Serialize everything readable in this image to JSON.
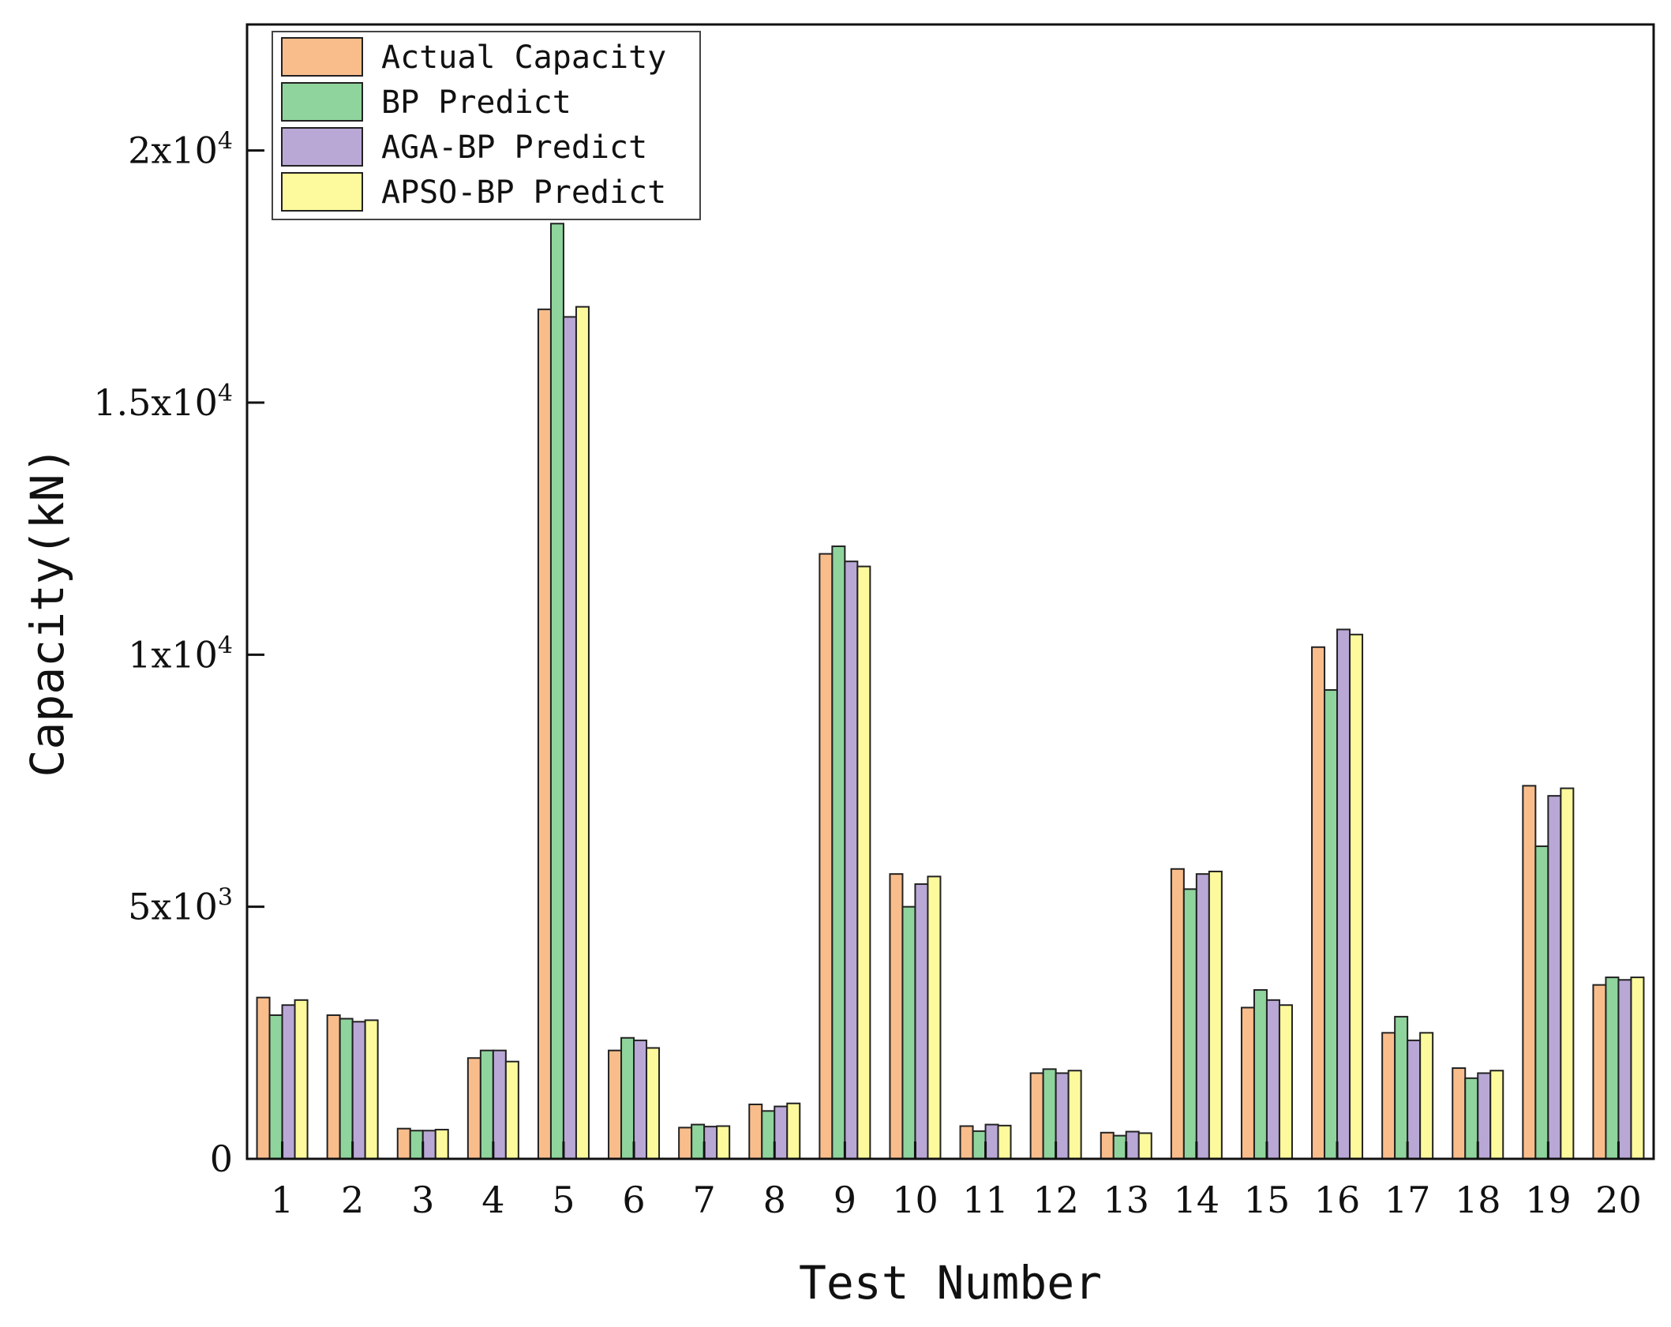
{
  "chart_data": {
    "type": "bar",
    "xlabel": "Test Number",
    "ylabel": "Capacity(kN)",
    "categories": [
      "1",
      "2",
      "3",
      "4",
      "5",
      "6",
      "7",
      "8",
      "9",
      "10",
      "11",
      "12",
      "13",
      "14",
      "15",
      "16",
      "17",
      "18",
      "19",
      "20"
    ],
    "ylim": [
      0,
      22500
    ],
    "y_ticks": [
      {
        "value": 0,
        "label": "0"
      },
      {
        "value": 5000,
        "label": "5x10",
        "sup": "3"
      },
      {
        "value": 10000,
        "label": "1x10",
        "sup": "4"
      },
      {
        "value": 15000,
        "label": "1.5x10",
        "sup": "4"
      },
      {
        "value": 20000,
        "label": "2x10",
        "sup": "4"
      }
    ],
    "grid": false,
    "legend_position": "top-left",
    "series": [
      {
        "name": "Actual Capacity",
        "color": "#f9bd8c",
        "values": [
          3200,
          2850,
          600,
          2000,
          16850,
          2150,
          620,
          1080,
          12000,
          5650,
          650,
          1700,
          520,
          5750,
          3000,
          10150,
          2500,
          1800,
          7400,
          3450
        ]
      },
      {
        "name": "BP Predict",
        "color": "#8fd49d",
        "values": [
          2850,
          2780,
          560,
          2150,
          18550,
          2400,
          680,
          950,
          12150,
          5000,
          550,
          1780,
          460,
          5350,
          3350,
          9300,
          2820,
          1600,
          6200,
          3600
        ]
      },
      {
        "name": "AGA-BP Predict",
        "color": "#b9a8d6",
        "values": [
          3050,
          2720,
          560,
          2150,
          16700,
          2350,
          640,
          1040,
          11850,
          5450,
          680,
          1700,
          540,
          5650,
          3150,
          10500,
          2350,
          1700,
          7200,
          3550
        ]
      },
      {
        "name": "APSO-BP Predict",
        "color": "#fcfa9c",
        "values": [
          3150,
          2750,
          580,
          1930,
          16900,
          2200,
          650,
          1100,
          11750,
          5600,
          660,
          1750,
          510,
          5700,
          3050,
          10400,
          2500,
          1750,
          7350,
          3600
        ]
      }
    ]
  }
}
